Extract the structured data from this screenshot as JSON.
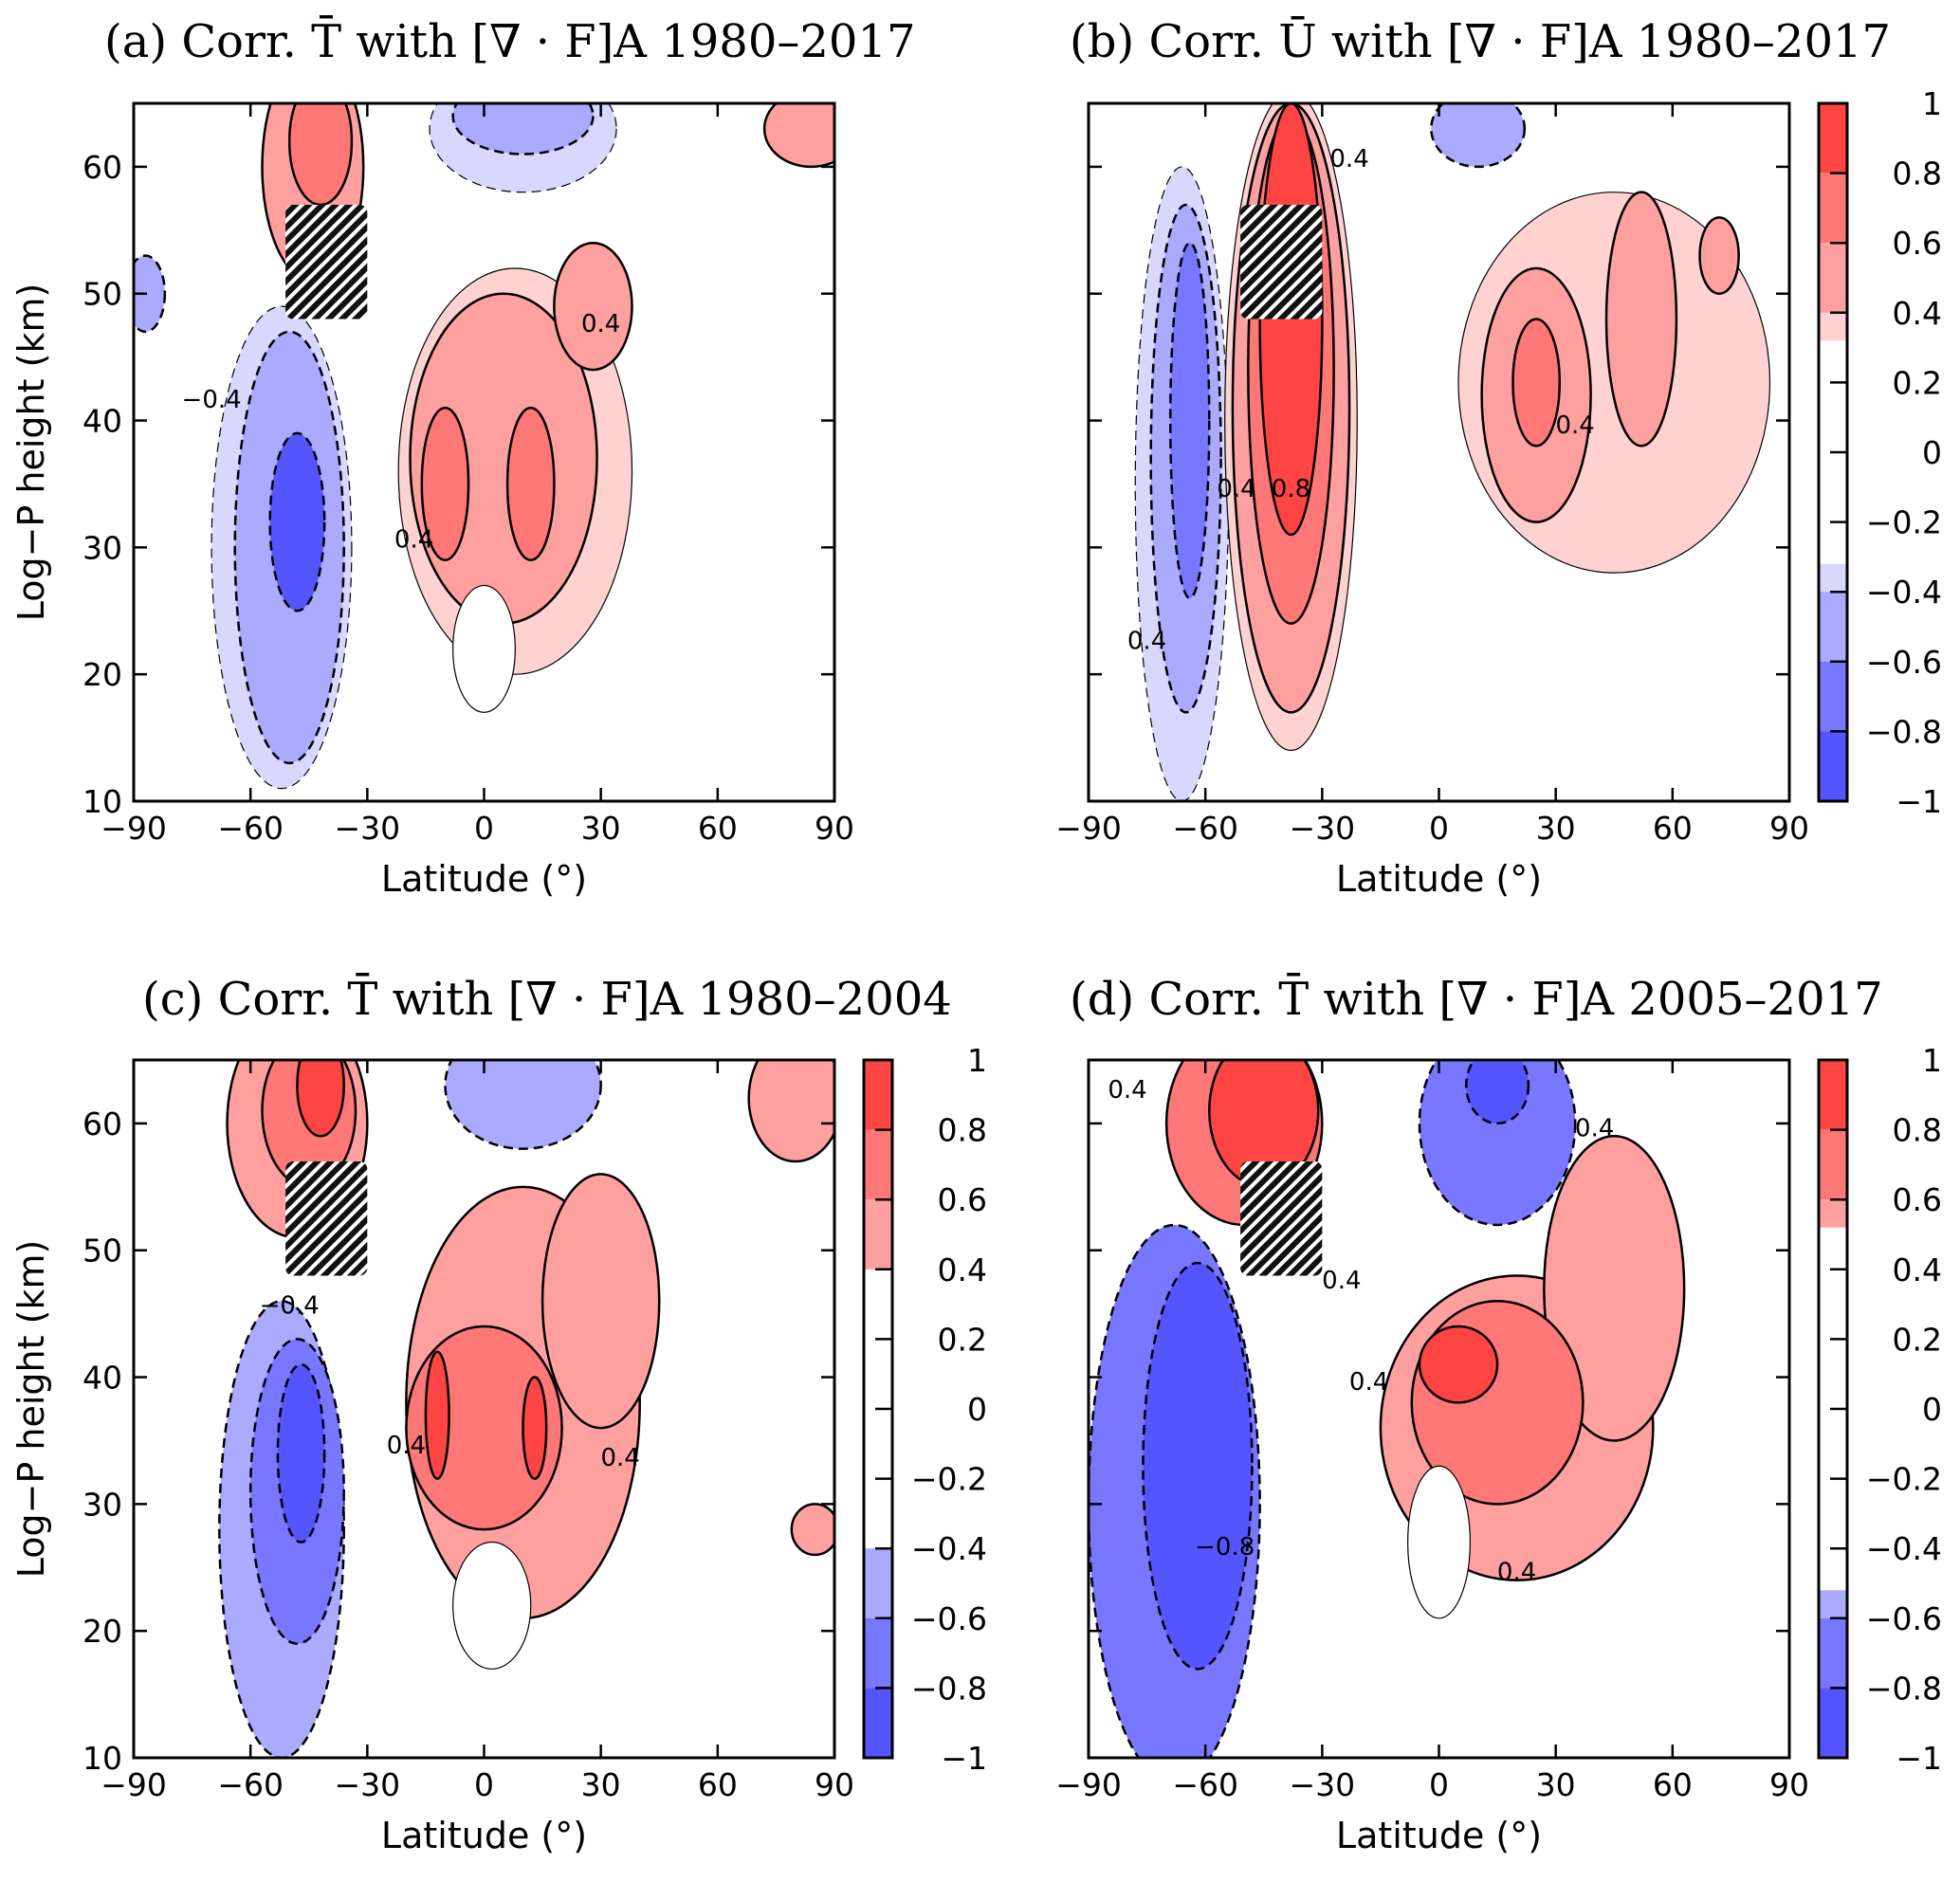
{
  "chart_data": [
    {
      "id": "a",
      "type": "heatmap",
      "title": "(a) Corr. T̄ with [∇ · F]A 1980–2017",
      "xlabel": "Latitude (°)",
      "ylabel": "Log−P height (km)",
      "xlim": [
        -90,
        90
      ],
      "ylim": [
        10,
        65
      ],
      "xticks": [
        "−90",
        "−60",
        "−30",
        "0",
        "30",
        "60",
        "90"
      ],
      "yticks": [
        "10",
        "20",
        "30",
        "40",
        "50",
        "60"
      ],
      "colorbar": false,
      "regions": [
        {
          "lat": -44,
          "z": 60,
          "rlat": 13,
          "rz": 9,
          "v": 0.45
        },
        {
          "lat": -42,
          "z": 62,
          "rlat": 8,
          "rz": 5,
          "v": 0.6
        },
        {
          "lat": 10,
          "z": 63,
          "rlat": 24,
          "rz": 5,
          "v": -0.35
        },
        {
          "lat": 10,
          "z": 64,
          "rlat": 18,
          "rz": 3,
          "v": -0.45
        },
        {
          "lat": 84,
          "z": 63,
          "rlat": 12,
          "rz": 3,
          "v": 0.5
        },
        {
          "lat": 8,
          "z": 36,
          "rlat": 30,
          "rz": 16,
          "v": 0.35
        },
        {
          "lat": 5,
          "z": 37,
          "rlat": 24,
          "rz": 13,
          "v": 0.45
        },
        {
          "lat": 28,
          "z": 49,
          "rlat": 10,
          "rz": 5,
          "v": 0.45
        },
        {
          "lat": -10,
          "z": 35,
          "rlat": 6,
          "rz": 6,
          "v": 0.6
        },
        {
          "lat": 12,
          "z": 35,
          "rlat": 6,
          "rz": 6,
          "v": 0.6
        },
        {
          "lat": 0,
          "z": 22,
          "rlat": 8,
          "rz": 5,
          "v": 0
        },
        {
          "lat": -52,
          "z": 30,
          "rlat": 18,
          "rz": 19,
          "v": -0.35
        },
        {
          "lat": -50,
          "z": 30,
          "rlat": 14,
          "rz": 17,
          "v": -0.5
        },
        {
          "lat": -48,
          "z": 32,
          "rlat": 7,
          "rz": 7,
          "v": -0.8
        },
        {
          "lat": -87,
          "z": 50,
          "rlat": 5,
          "rz": 3,
          "v": -0.45
        }
      ],
      "labels": [
        {
          "text": "−0.4",
          "lat": -70,
          "z": 41
        },
        {
          "text": "0.4",
          "lat": 30,
          "z": 47
        },
        {
          "text": "0.4",
          "lat": -18,
          "z": 30
        }
      ]
    },
    {
      "id": "b",
      "type": "heatmap",
      "title": "(b) Corr. Ū with [∇ · F]A 1980–2017",
      "xlabel": "Latitude (°)",
      "ylabel": "",
      "xlim": [
        -90,
        90
      ],
      "ylim": [
        10,
        65
      ],
      "xticks": [
        "−90",
        "−60",
        "−30",
        "0",
        "30",
        "60",
        "90"
      ],
      "yticks": [],
      "colorbar": true,
      "cbar_levels": [
        {
          "from": 0.8,
          "to": 1,
          "color": "#ff4444"
        },
        {
          "from": 0.6,
          "to": 0.8,
          "color": "#ff7777"
        },
        {
          "from": 0.4,
          "to": 0.6,
          "color": "#ffa0a0"
        },
        {
          "from": 0.32,
          "to": 0.4,
          "color": "#ffd2d2"
        },
        {
          "from": -0.4,
          "to": -0.32,
          "color": "#d8d8ff"
        },
        {
          "from": -0.6,
          "to": -0.4,
          "color": "#aaaaff"
        },
        {
          "from": -0.8,
          "to": -0.6,
          "color": "#7777ff"
        },
        {
          "from": -1,
          "to": -0.8,
          "color": "#5555ff"
        }
      ],
      "cbar_ticks": [
        "1",
        "0.8",
        "0.6",
        "0.4",
        "0.2",
        "0",
        "−0.2",
        "−0.4",
        "−0.6",
        "−0.8",
        "−1"
      ],
      "regions": [
        {
          "lat": -66,
          "z": 35,
          "rlat": 12,
          "rz": 25,
          "v": -0.35
        },
        {
          "lat": -65,
          "z": 37,
          "rlat": 9,
          "rz": 20,
          "v": -0.45
        },
        {
          "lat": -64,
          "z": 40,
          "rlat": 5,
          "rz": 14,
          "v": -0.6
        },
        {
          "lat": -38,
          "z": 40,
          "rlat": 17,
          "rz": 26,
          "v": 0.35
        },
        {
          "lat": -38,
          "z": 41,
          "rlat": 15,
          "rz": 24,
          "v": 0.5
        },
        {
          "lat": -38,
          "z": 44,
          "rlat": 11,
          "rz": 20,
          "v": 0.7
        },
        {
          "lat": -38,
          "z": 48,
          "rlat": 8,
          "rz": 17,
          "v": 0.85
        },
        {
          "lat": 10,
          "z": 63,
          "rlat": 12,
          "rz": 3,
          "v": -0.45
        },
        {
          "lat": 45,
          "z": 43,
          "rlat": 40,
          "rz": 15,
          "v": 0.35
        },
        {
          "lat": 25,
          "z": 42,
          "rlat": 14,
          "rz": 10,
          "v": 0.5
        },
        {
          "lat": 25,
          "z": 43,
          "rlat": 6,
          "rz": 5,
          "v": 0.7
        },
        {
          "lat": 52,
          "z": 48,
          "rlat": 9,
          "rz": 10,
          "v": 0.5
        },
        {
          "lat": 72,
          "z": 53,
          "rlat": 5,
          "rz": 3,
          "v": 0.5
        }
      ],
      "labels": [
        {
          "text": "0.4",
          "lat": -75,
          "z": 22
        },
        {
          "text": "0.8",
          "lat": -38,
          "z": 34
        },
        {
          "text": "0.4",
          "lat": -52,
          "z": 34
        },
        {
          "text": "0.4",
          "lat": -23,
          "z": 60
        },
        {
          "text": "0.4",
          "lat": 35,
          "z": 39
        }
      ]
    },
    {
      "id": "c",
      "type": "heatmap",
      "title": "(c) Corr. T̄ with [∇ · F]A 1980–2004",
      "xlabel": "Latitude (°)",
      "ylabel": "Log−P height (km)",
      "xlim": [
        -90,
        90
      ],
      "ylim": [
        10,
        65
      ],
      "xticks": [
        "−90",
        "−60",
        "−30",
        "0",
        "30",
        "60",
        "90"
      ],
      "yticks": [
        "10",
        "20",
        "30",
        "40",
        "50",
        "60"
      ],
      "colorbar": true,
      "cbar_levels": [
        {
          "from": 0.8,
          "to": 1,
          "color": "#ff4444"
        },
        {
          "from": 0.6,
          "to": 0.8,
          "color": "#ff7777"
        },
        {
          "from": 0.4,
          "to": 0.6,
          "color": "#ffa0a0"
        },
        {
          "from": -0.6,
          "to": -0.4,
          "color": "#aaaaff"
        },
        {
          "from": -0.8,
          "to": -0.6,
          "color": "#7777ff"
        },
        {
          "from": -1,
          "to": -0.8,
          "color": "#5555ff"
        }
      ],
      "cbar_ticks": [
        "1",
        "0.8",
        "0.6",
        "0.4",
        "0.2",
        "0",
        "−0.2",
        "−0.4",
        "−0.6",
        "−0.8",
        "−1"
      ],
      "regions": [
        {
          "lat": -48,
          "z": 60,
          "rlat": 18,
          "rz": 9,
          "v": 0.45
        },
        {
          "lat": -45,
          "z": 61,
          "rlat": 12,
          "rz": 6,
          "v": 0.65
        },
        {
          "lat": -42,
          "z": 63,
          "rlat": 6,
          "rz": 4,
          "v": 0.85
        },
        {
          "lat": 10,
          "z": 63,
          "rlat": 20,
          "rz": 5,
          "v": -0.45
        },
        {
          "lat": 80,
          "z": 62,
          "rlat": 12,
          "rz": 5,
          "v": 0.5
        },
        {
          "lat": 10,
          "z": 38,
          "rlat": 30,
          "rz": 17,
          "v": 0.5
        },
        {
          "lat": 30,
          "z": 46,
          "rlat": 15,
          "rz": 10,
          "v": 0.5
        },
        {
          "lat": 0,
          "z": 36,
          "rlat": 20,
          "rz": 8,
          "v": 0.65
        },
        {
          "lat": -12,
          "z": 37,
          "rlat": 3,
          "rz": 5,
          "v": 0.85
        },
        {
          "lat": 13,
          "z": 36,
          "rlat": 3,
          "rz": 4,
          "v": 0.85
        },
        {
          "lat": 2,
          "z": 22,
          "rlat": 10,
          "rz": 5,
          "v": 0
        },
        {
          "lat": -52,
          "z": 28,
          "rlat": 16,
          "rz": 18,
          "v": -0.45
        },
        {
          "lat": -48,
          "z": 31,
          "rlat": 12,
          "rz": 12,
          "v": -0.65
        },
        {
          "lat": -47,
          "z": 34,
          "rlat": 6,
          "rz": 7,
          "v": -0.85
        },
        {
          "lat": 85,
          "z": 28,
          "rlat": 6,
          "rz": 2,
          "v": 0.5
        }
      ],
      "labels": [
        {
          "text": "−0.4",
          "lat": -50,
          "z": 45
        },
        {
          "text": "0.4",
          "lat": -20,
          "z": 34
        },
        {
          "text": "0.4",
          "lat": 35,
          "z": 33
        }
      ]
    },
    {
      "id": "d",
      "type": "heatmap",
      "title": "(d) Corr. T̄ with [∇ · F]A 2005–2017",
      "xlabel": "Latitude (°)",
      "ylabel": "",
      "xlim": [
        -90,
        90
      ],
      "ylim": [
        10,
        65
      ],
      "xticks": [
        "−90",
        "−60",
        "−30",
        "0",
        "30",
        "60",
        "90"
      ],
      "yticks": [],
      "colorbar": true,
      "cbar_levels": [
        {
          "from": 0.8,
          "to": 1,
          "color": "#ff4444"
        },
        {
          "from": 0.6,
          "to": 0.8,
          "color": "#ff7777"
        },
        {
          "from": 0.52,
          "to": 0.6,
          "color": "#ffa0a0"
        },
        {
          "from": -0.6,
          "to": -0.52,
          "color": "#aaaaff"
        },
        {
          "from": -0.8,
          "to": -0.6,
          "color": "#7777ff"
        },
        {
          "from": -1,
          "to": -0.8,
          "color": "#5555ff"
        }
      ],
      "cbar_ticks": [
        "1",
        "0.8",
        "0.6",
        "0.4",
        "0.2",
        "0",
        "−0.2",
        "−0.4",
        "−0.6",
        "−0.8",
        "−1"
      ],
      "regions": [
        {
          "lat": -50,
          "z": 60,
          "rlat": 20,
          "rz": 8,
          "v": 0.65
        },
        {
          "lat": -45,
          "z": 61,
          "rlat": 14,
          "rz": 6,
          "v": 0.85
        },
        {
          "lat": 15,
          "z": 60,
          "rlat": 20,
          "rz": 8,
          "v": -0.65
        },
        {
          "lat": 15,
          "z": 63,
          "rlat": 8,
          "rz": 3,
          "v": -0.85
        },
        {
          "lat": -68,
          "z": 30,
          "rlat": 22,
          "rz": 22,
          "v": -0.65
        },
        {
          "lat": -62,
          "z": 33,
          "rlat": 14,
          "rz": 16,
          "v": -0.85
        },
        {
          "lat": 20,
          "z": 36,
          "rlat": 35,
          "rz": 12,
          "v": 0.55
        },
        {
          "lat": 45,
          "z": 47,
          "rlat": 18,
          "rz": 12,
          "v": 0.55
        },
        {
          "lat": 15,
          "z": 38,
          "rlat": 22,
          "rz": 8,
          "v": 0.65
        },
        {
          "lat": 5,
          "z": 41,
          "rlat": 10,
          "rz": 3,
          "v": 0.85
        },
        {
          "lat": 0,
          "z": 27,
          "rlat": 8,
          "rz": 6,
          "v": 0
        }
      ],
      "labels": [
        {
          "text": "0.4",
          "lat": -80,
          "z": 62
        },
        {
          "text": "0.4",
          "lat": 40,
          "z": 59
        },
        {
          "text": "0.4",
          "lat": -25,
          "z": 47
        },
        {
          "text": "0.4",
          "lat": -18,
          "z": 39
        },
        {
          "text": "−0.8",
          "lat": -55,
          "z": 26
        },
        {
          "text": "0.4",
          "lat": 20,
          "z": 24
        }
      ]
    }
  ],
  "colors": {
    "pos": [
      "#ffd2d2",
      "#ffa0a0",
      "#ff7777",
      "#ff4444"
    ],
    "neg": [
      "#d8d8ff",
      "#aaaaff",
      "#7777ff",
      "#5555ff"
    ]
  }
}
